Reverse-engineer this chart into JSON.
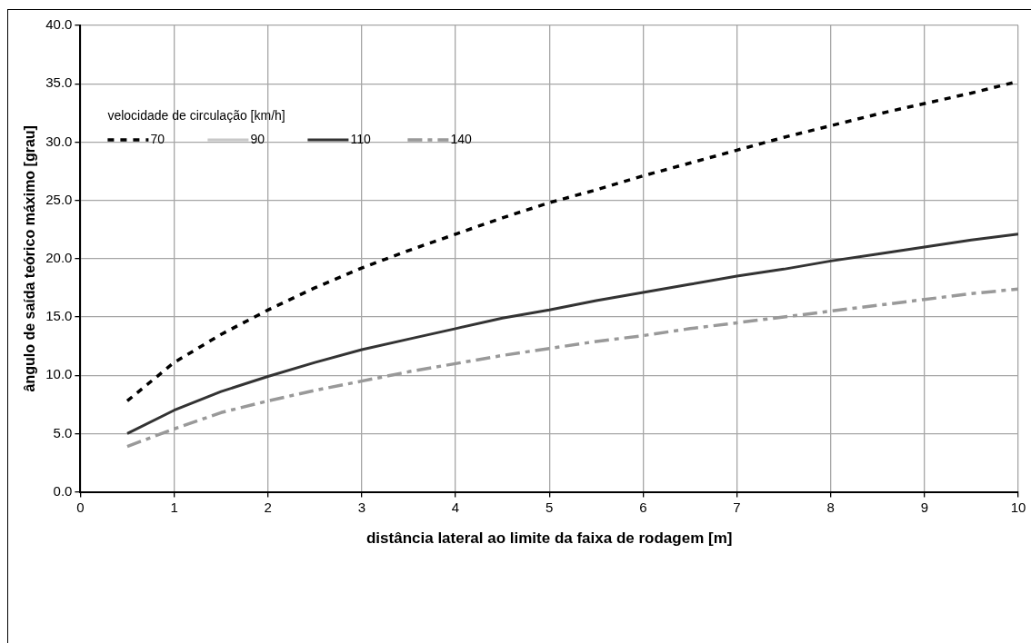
{
  "chart_data": {
    "type": "line",
    "xlabel": "distância lateral ao limite da faixa de rodagem [m]",
    "ylabel": "ângulo de saída teórico máximo [grau]",
    "legend_title": "velocidade de circulação [km/h]",
    "legend": "top left",
    "grid": true,
    "marker": "none",
    "x": [
      0.5,
      1,
      1.5,
      2,
      2.5,
      3,
      3.5,
      4,
      4.5,
      5,
      5.5,
      6,
      6.5,
      7,
      7.5,
      8,
      8.5,
      9,
      9.5,
      10
    ],
    "xlim": [
      0,
      10
    ],
    "xticks": [
      0,
      1,
      2,
      3,
      4,
      5,
      6,
      7,
      8,
      9,
      10
    ],
    "ylim": [
      0,
      40
    ],
    "yticks": [
      {
        "value": 0,
        "label": "0.0"
      },
      {
        "value": 5,
        "label": "5.0"
      },
      {
        "value": 10,
        "label": "10.0"
      },
      {
        "value": 15,
        "label": "15.0"
      },
      {
        "value": 20,
        "label": "20.0"
      },
      {
        "value": 25,
        "label": "25.0"
      },
      {
        "value": 30,
        "label": "30.0"
      },
      {
        "value": 35,
        "label": "35.0"
      },
      {
        "value": 40,
        "label": "40.0"
      }
    ],
    "series": [
      {
        "name": "70",
        "color": "#000000",
        "line_style": "dotted",
        "values": [
          7.8,
          11.1,
          13.5,
          15.6,
          17.5,
          19.2,
          20.7,
          22.1,
          23.5,
          24.8,
          25.9,
          27.1,
          28.2,
          29.3,
          30.4,
          31.4,
          32.4,
          33.3,
          34.2,
          35.2
        ]
      },
      {
        "name": "90",
        "color": "#c8c8c8",
        "line_style": "solid",
        "values": [
          null,
          null,
          null,
          null,
          null,
          null,
          null,
          null,
          null,
          null,
          null,
          null,
          null,
          null,
          null,
          null,
          null,
          null,
          null,
          null
        ]
      },
      {
        "name": "110",
        "color": "#333333",
        "line_style": "solid",
        "values": [
          5.0,
          7.0,
          8.6,
          9.9,
          11.1,
          12.2,
          13.1,
          14.0,
          14.9,
          15.6,
          16.4,
          17.1,
          17.8,
          18.5,
          19.1,
          19.8,
          20.4,
          21.0,
          21.6,
          22.1
        ]
      },
      {
        "name": "140",
        "color": "#999999",
        "line_style": "dashed",
        "values": [
          3.9,
          5.4,
          6.8,
          7.8,
          8.7,
          9.5,
          10.3,
          11.0,
          11.7,
          12.3,
          12.9,
          13.4,
          14.0,
          14.5,
          15.0,
          15.5,
          16.0,
          16.5,
          17.0,
          17.4
        ]
      }
    ]
  }
}
